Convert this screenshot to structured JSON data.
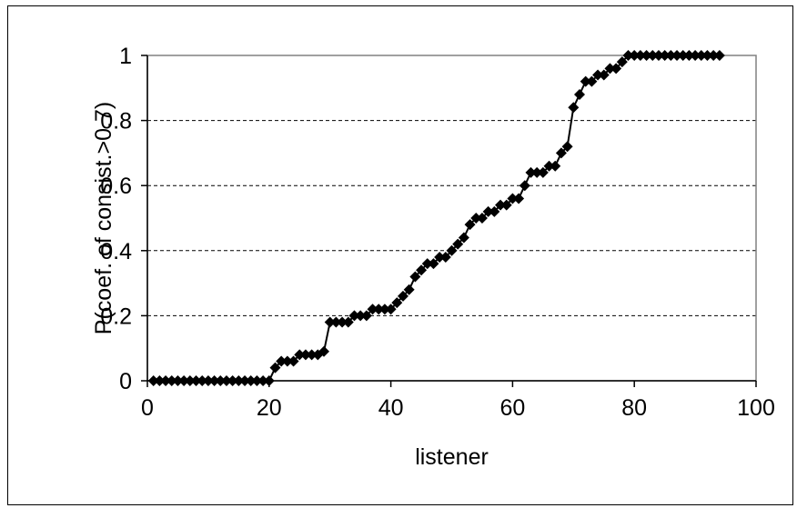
{
  "chart_data": {
    "type": "line",
    "title": "",
    "xlabel": "listener",
    "ylabel": "P(coef. of consist.>0.7)",
    "xlim": [
      0,
      100
    ],
    "ylim": [
      0,
      1
    ],
    "x_ticks": [
      0,
      20,
      40,
      60,
      80,
      100
    ],
    "y_ticks": [
      0,
      0.2,
      0.4,
      0.6,
      0.8,
      1
    ],
    "x_tick_labels": [
      "0",
      "20",
      "40",
      "60",
      "80",
      "100"
    ],
    "y_tick_labels": [
      "0",
      "0.2",
      "0.4",
      "0.6",
      "0.8",
      "1"
    ],
    "grid": "horizontal dashed",
    "legend": "none",
    "marker": "diamond",
    "colors": {
      "series": "#000000",
      "grid": "#000000",
      "plot_border": "#808080"
    },
    "series": [
      {
        "x": [
          1,
          2,
          3,
          4,
          5,
          6,
          7,
          8,
          9,
          10,
          11,
          12,
          13,
          14,
          15,
          16,
          17,
          18,
          19,
          20,
          21,
          22,
          23,
          24,
          25,
          26,
          27,
          28,
          29,
          30,
          31,
          32,
          33,
          34,
          35,
          36,
          37,
          38,
          39,
          40,
          41,
          42,
          43,
          44,
          45,
          46,
          47,
          48,
          49,
          50,
          51,
          52,
          53,
          54,
          55,
          56,
          57,
          58,
          59,
          60,
          61,
          62,
          63,
          64,
          65,
          66,
          67,
          68,
          69,
          70,
          71,
          72,
          73,
          74,
          75,
          76,
          77,
          78,
          79,
          80,
          81,
          82,
          83,
          84,
          85,
          86,
          87,
          88,
          89,
          90,
          91,
          92,
          93,
          94
        ],
        "y": [
          0,
          0,
          0,
          0,
          0,
          0,
          0,
          0,
          0,
          0,
          0,
          0,
          0,
          0,
          0,
          0,
          0,
          0,
          0,
          0,
          0.04,
          0.06,
          0.06,
          0.06,
          0.08,
          0.08,
          0.08,
          0.08,
          0.09,
          0.18,
          0.18,
          0.18,
          0.18,
          0.2,
          0.2,
          0.2,
          0.22,
          0.22,
          0.22,
          0.22,
          0.24,
          0.26,
          0.28,
          0.32,
          0.34,
          0.36,
          0.36,
          0.38,
          0.38,
          0.4,
          0.42,
          0.44,
          0.48,
          0.5,
          0.5,
          0.52,
          0.52,
          0.54,
          0.54,
          0.56,
          0.56,
          0.6,
          0.64,
          0.64,
          0.64,
          0.66,
          0.66,
          0.7,
          0.72,
          0.84,
          0.88,
          0.92,
          0.92,
          0.94,
          0.94,
          0.96,
          0.96,
          0.98,
          1,
          1,
          1,
          1,
          1,
          1,
          1,
          1,
          1,
          1,
          1,
          1,
          1,
          1,
          1,
          1
        ]
      }
    ]
  }
}
